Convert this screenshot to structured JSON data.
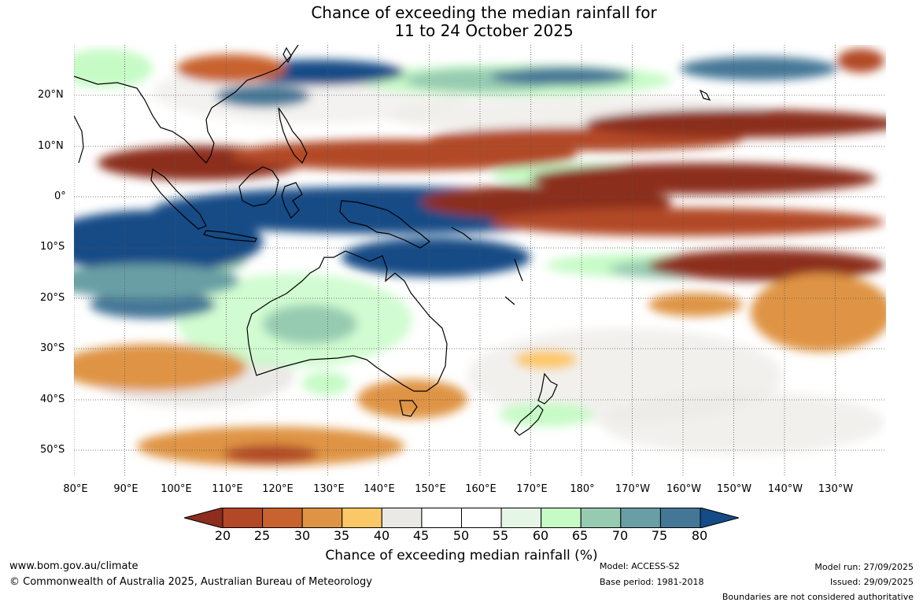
{
  "title_line1": "Chance of exceeding the median rainfall for",
  "title_line2": "11 to 24 October 2025",
  "lat_labels": [
    "20°N",
    "10°N",
    "0°",
    "10°S",
    "20°S",
    "30°S",
    "40°S",
    "50°S"
  ],
  "lon_labels": [
    "80°E",
    "90°E",
    "100°E",
    "110°E",
    "120°E",
    "130°E",
    "140°E",
    "150°E",
    "160°E",
    "170°E",
    "180°",
    "170°W",
    "160°W",
    "150°W",
    "140°W",
    "130°W"
  ],
  "colorbar": {
    "ticks": [
      "20",
      "25",
      "30",
      "35",
      "40",
      "45",
      "50",
      "55",
      "60",
      "65",
      "70",
      "75",
      "80"
    ],
    "label": "Chance of exceeding median rainfall (%)",
    "colors": [
      "#8c2d1e",
      "#b24825",
      "#c8622f",
      "#df9445",
      "#fcc766",
      "#ebe9e6",
      "#ffffff",
      "#ffffff",
      "#e6f6e6",
      "#c6fbc6",
      "#97cbb1",
      "#699fa4",
      "#447796",
      "#154b86"
    ]
  },
  "footer": {
    "url": "www.bom.gov.au/climate",
    "copyright": "© Commonwealth of Australia 2025, Australian Bureau of Meteorology",
    "model": "Model: ACCESS-S2",
    "base_period": "Base period: 1981-2018",
    "model_run": "Model run: 27/09/2025",
    "issued": "Issued: 29/09/2025",
    "disclaimer": "Boundaries are not considered authoritative"
  }
}
